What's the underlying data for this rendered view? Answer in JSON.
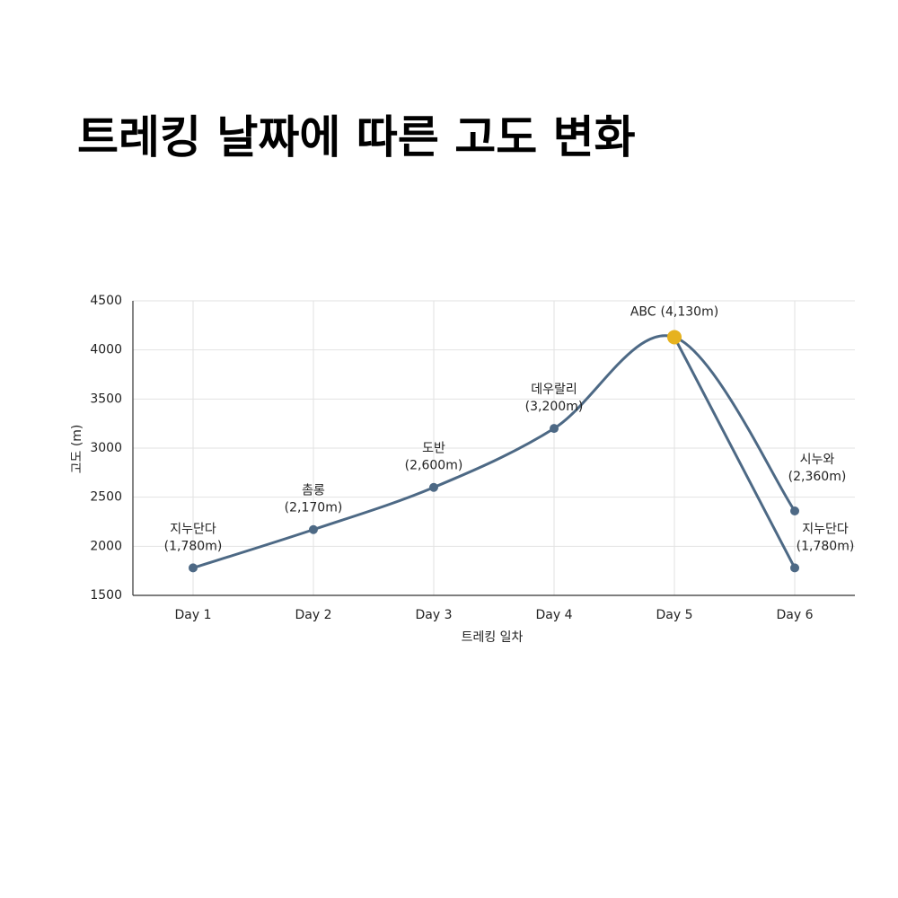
{
  "chart_data": {
    "type": "line",
    "title": "트레킹 날짜에 따른 고도 변화",
    "x_label": "트레킹 일차",
    "y_label": "고도 (m)",
    "categories": [
      "Day 1",
      "Day 2",
      "Day 3",
      "Day 4",
      "Day 5",
      "Day 6"
    ],
    "series": [
      {
        "color": "#4d6985",
        "values": [
          1780,
          2170,
          2600,
          3200,
          4130,
          2360
        ],
        "point_names": [
          "지누단다",
          "촘롱",
          "도반",
          "데우랄리",
          "ABC",
          "시누와"
        ],
        "value_labels": [
          "(1,780m)",
          "(2,170m)",
          "(2,600m)",
          "(3,200m)",
          "(4,130m)",
          "(2,360m)"
        ],
        "marker_colors": [
          "#4d6985",
          "#4d6985",
          "#4d6985",
          "#4d6985",
          "#e6b21e",
          "#4d6985"
        ]
      },
      {
        "color": "#4d6985",
        "values": [
          null,
          null,
          null,
          null,
          4130,
          1780
        ],
        "point_names": [
          null,
          null,
          null,
          null,
          null,
          "지누단다"
        ],
        "value_labels": [
          null,
          null,
          null,
          null,
          null,
          "(1,780m)"
        ],
        "marker_colors": [
          null,
          null,
          null,
          null,
          null,
          "#4d6985"
        ]
      }
    ],
    "ylim": [
      1500,
      4500
    ],
    "yticks": [
      1500,
      2000,
      2500,
      3000,
      3500,
      4000,
      4500
    ],
    "grid": true
  }
}
